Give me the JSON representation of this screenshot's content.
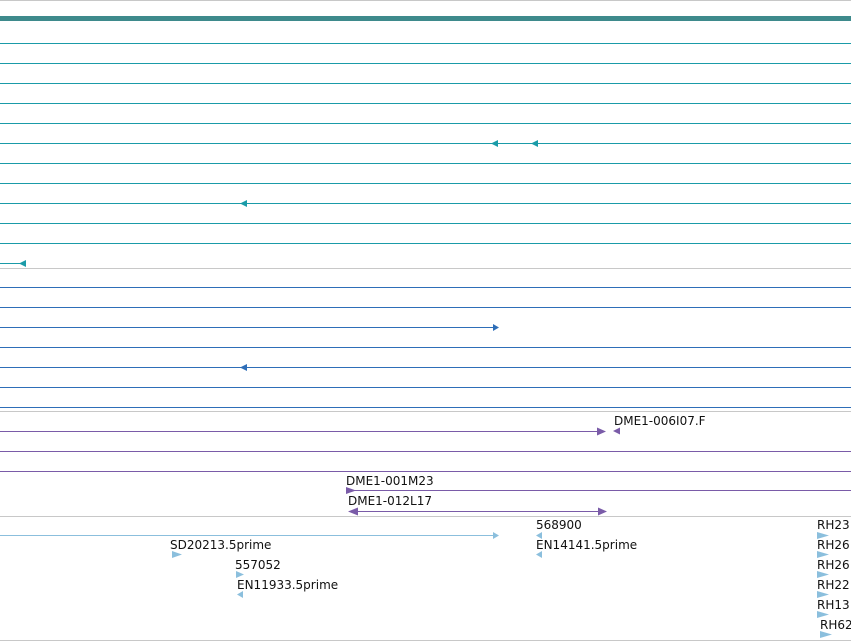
{
  "colors": {
    "teal": "#1A9BA8",
    "teal_header": "#3E8A8C",
    "blue": "#2E6EB8",
    "purple": "#7A5BA8",
    "light_blue": "#8BBFDD",
    "separator": "#C8C8C8"
  },
  "tracks": {
    "cdna_labels": {
      "dme1_006i07f": "DME1-006I07.F",
      "dme1_001m23": "DME1-001M23",
      "dme1_012l17": "DME1-012L17"
    },
    "est_labels": {
      "n568900": "568900",
      "sd20213": "SD20213.5prime",
      "en14141": "EN14141.5prime",
      "n557052": "557052",
      "en11933": "EN11933.5prime",
      "rh23": "RH23",
      "rh26a": "RH26",
      "rh26b": "RH26",
      "rh22": "RH22",
      "rh13": "RH13",
      "rh62": "RH62"
    }
  }
}
